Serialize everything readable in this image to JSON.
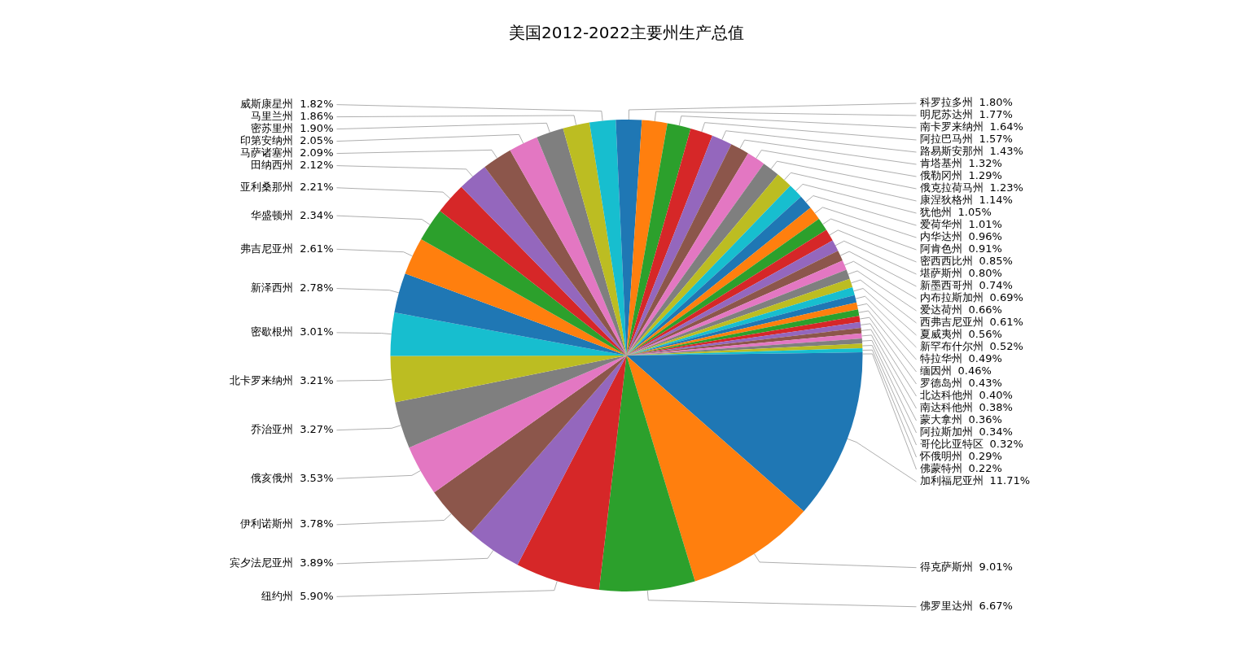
{
  "chart_data": {
    "type": "pie",
    "title": "美国2012-2022主要州生产总值",
    "categories": [
      "加利福尼亚州",
      "得克萨斯州",
      "佛罗里达州",
      "纽约州",
      "宾夕法尼亚州",
      "伊利诺斯州",
      "俄亥俄州",
      "乔治亚州",
      "北卡罗来纳州",
      "密歇根州",
      "新泽西州",
      "弗吉尼亚州",
      "华盛顿州",
      "亚利桑那州",
      "田纳西州",
      "马萨诸塞州",
      "印第安纳州",
      "密苏里州",
      "马里兰州",
      "威斯康星州",
      "科罗拉多州",
      "明尼苏达州",
      "南卡罗来纳州",
      "阿拉巴马州",
      "路易斯安那州",
      "肯塔基州",
      "俄勒冈州",
      "俄克拉荷马州",
      "康涅狄格州",
      "犹他州",
      "爱荷华州",
      "内华达州",
      "阿肯色州",
      "密西西比州",
      "堪萨斯州",
      "新墨西哥州",
      "内布拉斯加州",
      "爱达荷州",
      "西弗吉尼亚州",
      "夏威夷州",
      "新罕布什尔州",
      "特拉华州",
      "缅因州",
      "罗德岛州",
      "北达科他州",
      "南达科他州",
      "蒙大拿州",
      "阿拉斯加州",
      "哥伦比亚特区",
      "怀俄明州",
      "佛蒙特州"
    ],
    "values": [
      11.71,
      9.01,
      6.67,
      5.9,
      3.89,
      3.78,
      3.53,
      3.27,
      3.21,
      3.01,
      2.78,
      2.61,
      2.34,
      2.21,
      2.12,
      2.09,
      2.05,
      1.9,
      1.86,
      1.82,
      1.8,
      1.77,
      1.64,
      1.57,
      1.43,
      1.32,
      1.29,
      1.23,
      1.14,
      1.05,
      1.01,
      0.96,
      0.91,
      0.85,
      0.8,
      0.74,
      0.69,
      0.66,
      0.61,
      0.56,
      0.52,
      0.49,
      0.46,
      0.43,
      0.4,
      0.38,
      0.36,
      0.34,
      0.32,
      0.29,
      0.22
    ],
    "colors": [
      "#1f77b4",
      "#ff7f0e",
      "#2ca02c",
      "#d62728",
      "#9467bd",
      "#8c564b",
      "#e377c2",
      "#7f7f7f",
      "#bcbd22",
      "#17becf",
      "#1f77b4",
      "#ff7f0e",
      "#2ca02c",
      "#d62728",
      "#9467bd",
      "#8c564b",
      "#e377c2",
      "#7f7f7f",
      "#bcbd22",
      "#17becf",
      "#1f77b4",
      "#ff7f0e",
      "#2ca02c",
      "#d62728",
      "#9467bd",
      "#8c564b",
      "#e377c2",
      "#7f7f7f",
      "#bcbd22",
      "#17becf",
      "#1f77b4",
      "#ff7f0e",
      "#2ca02c",
      "#d62728",
      "#9467bd",
      "#8c564b",
      "#e377c2",
      "#7f7f7f",
      "#bcbd22",
      "#17becf",
      "#1f77b4",
      "#ff7f0e",
      "#2ca02c",
      "#d62728",
      "#9467bd",
      "#8c564b",
      "#e377c2",
      "#7f7f7f",
      "#bcbd22",
      "#17becf",
      "#1f77b4"
    ],
    "value_labels": [
      "11.71%",
      "9.01%",
      "6.67%",
      "5.90%",
      "3.89%",
      "3.78%",
      "3.53%",
      "3.27%",
      "3.21%",
      "3.01%",
      "2.78%",
      "2.61%",
      "2.34%",
      "2.21%",
      "2.12%",
      "2.09%",
      "2.05%",
      "1.90%",
      "1.86%",
      "1.82%",
      "1.80%",
      "1.77%",
      "1.64%",
      "1.57%",
      "1.43%",
      "1.32%",
      "1.29%",
      "1.23%",
      "1.14%",
      "1.05%",
      "1.01%",
      "0.96%",
      "0.91%",
      "0.85%",
      "0.80%",
      "0.74%",
      "0.69%",
      "0.66%",
      "0.61%",
      "0.56%",
      "0.52%",
      "0.49%",
      "0.46%",
      "0.43%",
      "0.40%",
      "0.38%",
      "0.36%",
      "0.34%",
      "0.32%",
      "0.29%",
      "0.22%"
    ],
    "legend": false
  }
}
